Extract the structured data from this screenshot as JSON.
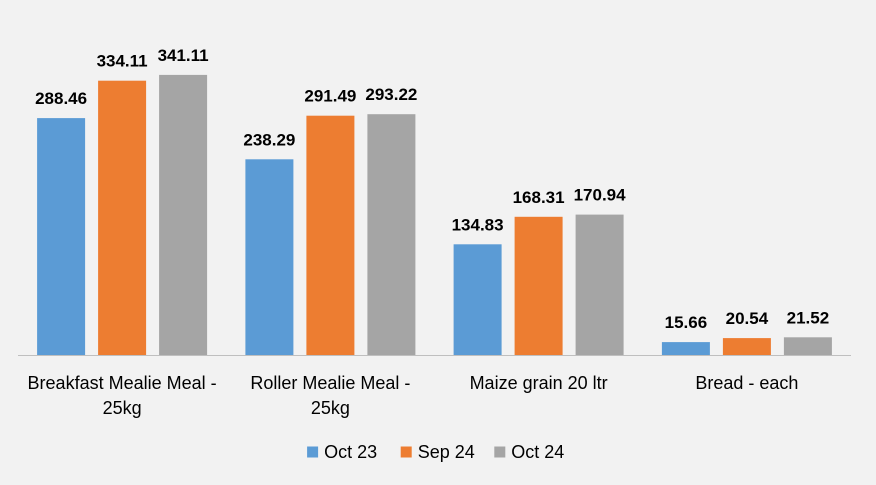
{
  "chart_data": {
    "type": "bar",
    "categories": [
      [
        "Breakfast Mealie Meal -",
        "25kg"
      ],
      [
        "Roller Mealie Meal -",
        "25kg"
      ],
      [
        "Maize grain 20 ltr"
      ],
      [
        "Bread - each"
      ]
    ],
    "series": [
      {
        "name": "Oct 23",
        "color": "#5b9bd5",
        "values": [
          288.46,
          238.29,
          134.83,
          15.66
        ]
      },
      {
        "name": "Sep 24",
        "color": "#ed7d31",
        "values": [
          334.11,
          291.49,
          168.31,
          20.54
        ]
      },
      {
        "name": "Oct 24",
        "color": "#a5a5a5",
        "values": [
          341.11,
          293.22,
          170.94,
          21.52
        ]
      }
    ],
    "data_labels": [
      [
        "288.46",
        "238.29",
        "134.83",
        "15.66"
      ],
      [
        "334.11",
        "291.49",
        "168.31",
        "20.54"
      ],
      [
        "341.11",
        "293.22",
        "170.94",
        "21.52"
      ]
    ],
    "ylim": [
      0,
      400
    ],
    "grid": false,
    "legend_position": "bottom"
  }
}
